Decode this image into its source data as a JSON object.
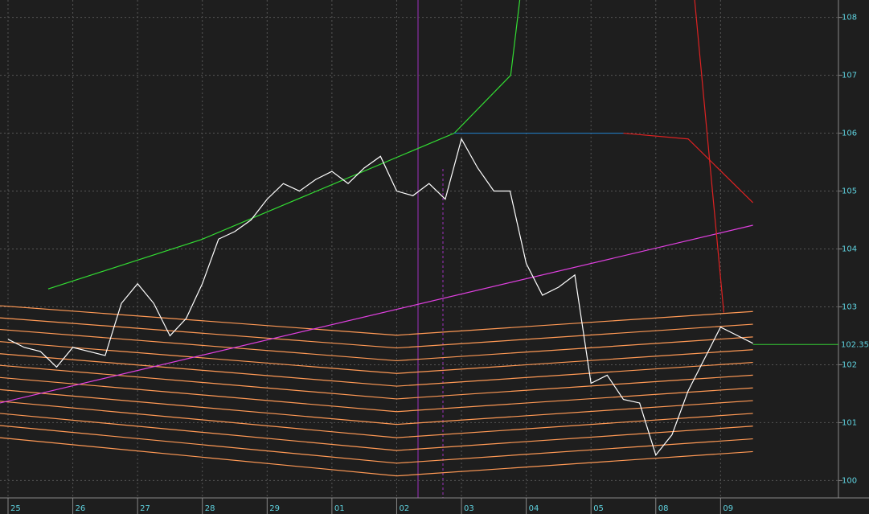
{
  "chart_data": {
    "type": "line",
    "categories": [
      "25",
      "26",
      "27",
      "28",
      "29",
      "01",
      "02",
      "03",
      "04",
      "05",
      "08",
      "09"
    ],
    "xlim": [
      -0.124,
      12.82
    ],
    "ylim": [
      99.7,
      108.3
    ],
    "yticks": [
      100,
      101,
      102,
      103,
      104,
      105,
      106,
      107,
      108
    ],
    "grid": true,
    "last_price": 102.35,
    "last_price_color": "#33cc33",
    "series": [
      {
        "color": "#ff9955",
        "x": [
          -0.124,
          6,
          11.5
        ],
        "values": [
          103.02,
          102.51,
          102.92
        ]
      },
      {
        "color": "#ff9955",
        "x": [
          -0.124,
          6,
          11.5
        ],
        "values": [
          102.81,
          102.29,
          102.7
        ]
      },
      {
        "color": "#ff9955",
        "x": [
          -0.124,
          6,
          11.5
        ],
        "values": [
          102.61,
          102.07,
          102.48
        ]
      },
      {
        "color": "#ff9955",
        "x": [
          -0.124,
          6,
          11.5
        ],
        "values": [
          102.4,
          101.85,
          102.26
        ]
      },
      {
        "color": "#ff9955",
        "x": [
          -0.124,
          6,
          11.5
        ],
        "values": [
          102.19,
          101.63,
          102.04
        ]
      },
      {
        "color": "#ff9955",
        "x": [
          -0.124,
          6,
          11.5
        ],
        "values": [
          101.99,
          101.41,
          101.82
        ]
      },
      {
        "color": "#ff9955",
        "x": [
          -0.124,
          6,
          11.5
        ],
        "values": [
          101.78,
          101.19,
          101.6
        ]
      },
      {
        "color": "#ff9955",
        "x": [
          -0.124,
          6,
          11.5
        ],
        "values": [
          101.57,
          100.97,
          101.38
        ]
      },
      {
        "color": "#ff9955",
        "x": [
          -0.124,
          6,
          11.5
        ],
        "values": [
          101.37,
          100.74,
          101.16
        ]
      },
      {
        "color": "#ff9955",
        "x": [
          -0.124,
          6,
          11.5
        ],
        "values": [
          101.16,
          100.52,
          100.94
        ]
      },
      {
        "color": "#ff9955",
        "x": [
          -0.124,
          6,
          11.5
        ],
        "values": [
          100.95,
          100.3,
          100.72
        ]
      },
      {
        "color": "#ff9955",
        "x": [
          -0.124,
          6,
          11.5
        ],
        "values": [
          100.74,
          100.08,
          100.5
        ]
      },
      {
        "color": "#e040e0",
        "x": [
          -0.124,
          11.5
        ],
        "values": [
          101.34,
          104.41
        ]
      },
      {
        "color": "#33dd33",
        "x": [
          0.62,
          2.98,
          6.89,
          7.76,
          7.9
        ],
        "values": [
          103.31,
          104.16,
          106.0,
          107.0,
          108.3
        ]
      },
      {
        "color": "#2277bb",
        "x": [
          6.89,
          9.5
        ],
        "values": [
          106.0,
          106.0
        ]
      },
      {
        "color": "#dd2222",
        "x": [
          9.5,
          10.5,
          11.5
        ],
        "values": [
          106.0,
          105.9,
          104.8
        ]
      },
      {
        "color": "#dd2222",
        "x": [
          10.6,
          11.05
        ],
        "values": [
          108.3,
          102.9
        ]
      },
      {
        "color": "#ffffff",
        "x": [
          0,
          0.25,
          0.5,
          0.75,
          1,
          1.25,
          1.5,
          1.75,
          2,
          2.25,
          2.5,
          2.75,
          3,
          3.25,
          3.5,
          3.75,
          4,
          4.25,
          4.5,
          4.75,
          5,
          5.25,
          5.5,
          5.75,
          6,
          6.25,
          6.5,
          6.75,
          7,
          7.25,
          7.5,
          7.75,
          8,
          8.25,
          8.5,
          8.75,
          9,
          9.25,
          9.5,
          9.75,
          10,
          10.25,
          10.5,
          10.75,
          11,
          11.25,
          11.5
        ],
        "values": [
          102.44,
          102.3,
          102.23,
          101.96,
          102.3,
          102.23,
          102.16,
          103.06,
          103.4,
          103.06,
          102.5,
          102.8,
          103.4,
          104.17,
          104.3,
          104.5,
          104.86,
          105.13,
          105.0,
          105.2,
          105.34,
          105.13,
          105.4,
          105.6,
          105.0,
          104.92,
          105.13,
          104.86,
          105.9,
          105.4,
          105.0,
          105.0,
          103.75,
          103.2,
          103.34,
          103.55,
          101.68,
          101.82,
          101.4,
          101.34,
          100.44,
          100.79,
          101.55,
          102.1,
          102.65,
          102.51,
          102.37
        ]
      }
    ]
  }
}
